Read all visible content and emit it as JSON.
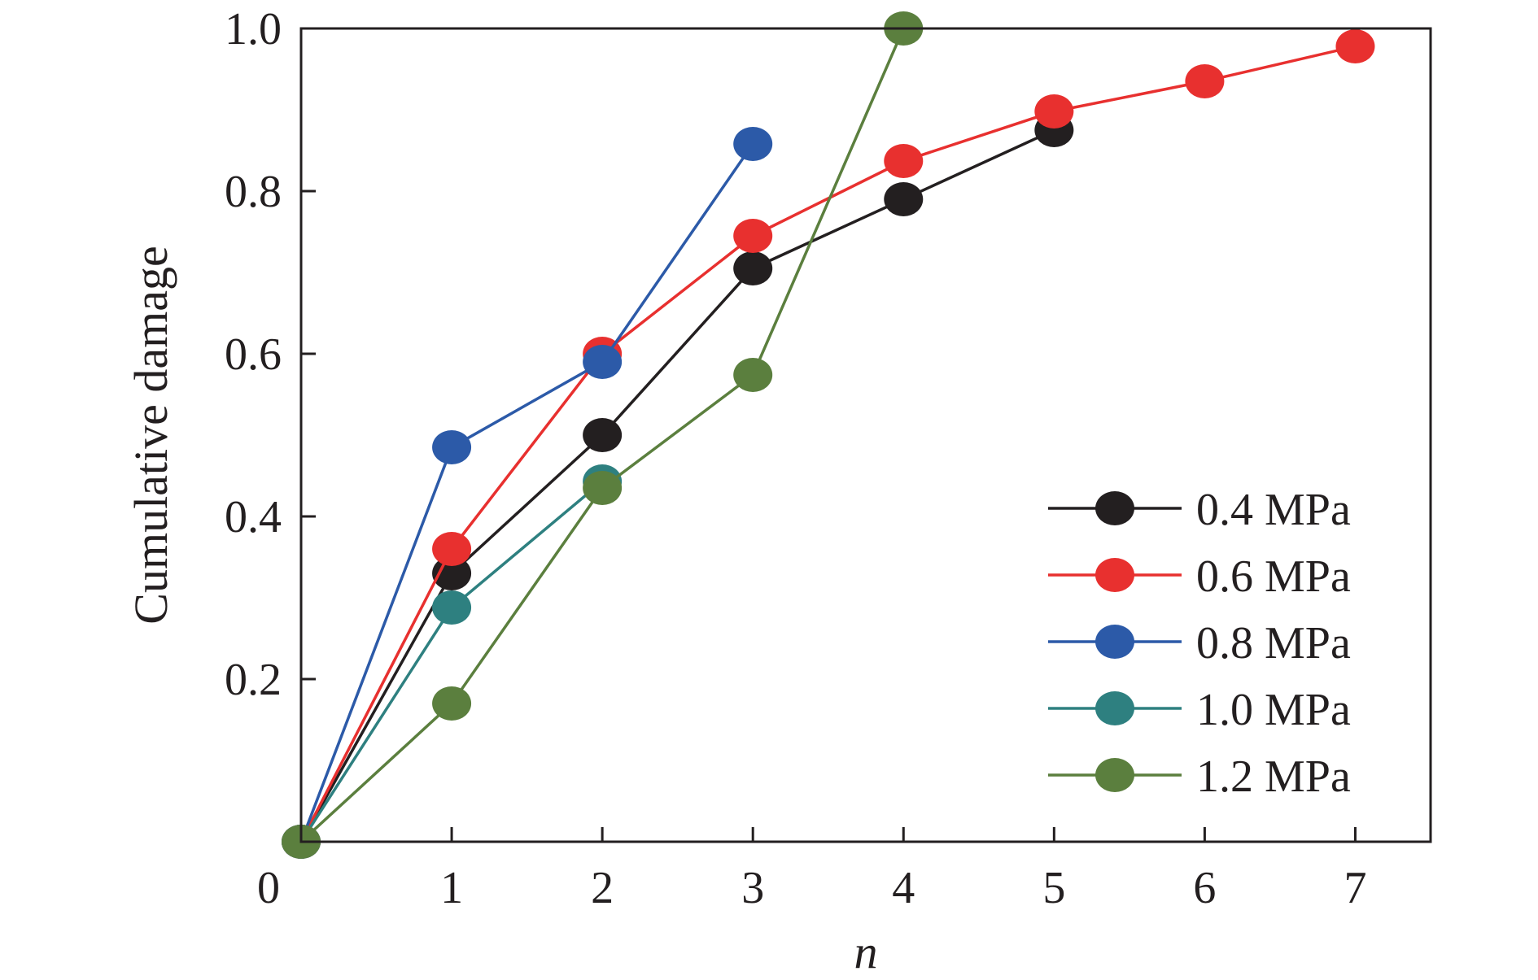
{
  "chart_data": {
    "type": "line",
    "xlabel": "n",
    "ylabel": "Cumulative damage",
    "xlim": [
      0,
      7.5
    ],
    "ylim": [
      0,
      1.0
    ],
    "x_ticks": [
      "0",
      "1",
      "2",
      "3",
      "4",
      "5",
      "6",
      "7"
    ],
    "y_ticks": [
      "0.2",
      "0.4",
      "0.6",
      "0.8",
      "1.0"
    ],
    "grid": false,
    "legend_position": "bottom-right",
    "series": [
      {
        "name": "0.4 MPa",
        "color": "#231f20",
        "x": [
          0,
          1,
          2,
          3,
          4,
          5
        ],
        "values": [
          0,
          0.33,
          0.5,
          0.705,
          0.79,
          0.875
        ]
      },
      {
        "name": "0.6 MPa",
        "color": "#e8302f",
        "x": [
          0,
          1,
          2,
          3,
          4,
          5,
          6,
          7
        ],
        "values": [
          0,
          0.36,
          0.6,
          0.745,
          0.837,
          0.898,
          0.935,
          0.978
        ]
      },
      {
        "name": "0.8 MPa",
        "color": "#2c5aa8",
        "x": [
          0,
          1,
          2,
          3
        ],
        "values": [
          0,
          0.485,
          0.59,
          0.858
        ]
      },
      {
        "name": "1.0 MPa",
        "color": "#2e8080",
        "x": [
          0,
          1,
          2
        ],
        "values": [
          0,
          0.288,
          0.443
        ]
      },
      {
        "name": "1.2 MPa",
        "color": "#5b7f3e",
        "x": [
          0,
          1,
          2,
          3,
          4
        ],
        "values": [
          0,
          0.17,
          0.435,
          0.574,
          1.0
        ]
      }
    ]
  }
}
